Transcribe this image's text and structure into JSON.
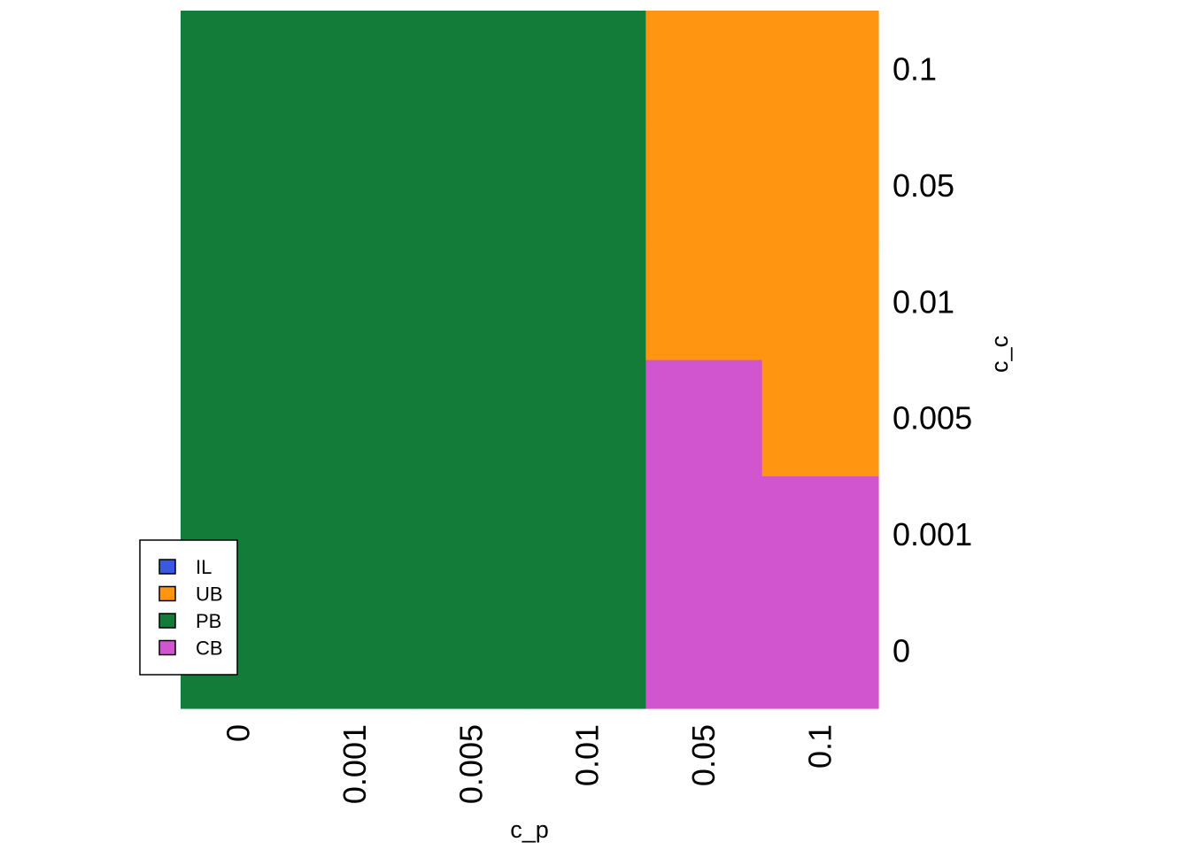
{
  "chart_data": {
    "type": "heatmap",
    "title": "",
    "xlabel": "c_p",
    "ylabel": "c_c",
    "x_categories": [
      "0",
      "0.001",
      "0.005",
      "0.01",
      "0.05",
      "0.1"
    ],
    "y_categories": [
      "0",
      "0.001",
      "0.005",
      "0.01",
      "0.05",
      "0.1"
    ],
    "classes": [
      {
        "name": "IL",
        "color": "#3A58E0"
      },
      {
        "name": "UB",
        "color": "#FF9510"
      },
      {
        "name": "PB",
        "color": "#127C38"
      },
      {
        "name": "CB",
        "color": "#D055CF"
      }
    ],
    "cells": [
      [
        "PB",
        "PB",
        "PB",
        "PB",
        "CB",
        "CB"
      ],
      [
        "PB",
        "PB",
        "PB",
        "PB",
        "CB",
        "CB"
      ],
      [
        "PB",
        "PB",
        "PB",
        "PB",
        "CB",
        "UB"
      ],
      [
        "PB",
        "PB",
        "PB",
        "PB",
        "UB",
        "UB"
      ],
      [
        "PB",
        "PB",
        "PB",
        "PB",
        "UB",
        "UB"
      ],
      [
        "PB",
        "PB",
        "PB",
        "PB",
        "UB",
        "UB"
      ]
    ],
    "legend_position": "bottom-left",
    "grid": false
  }
}
